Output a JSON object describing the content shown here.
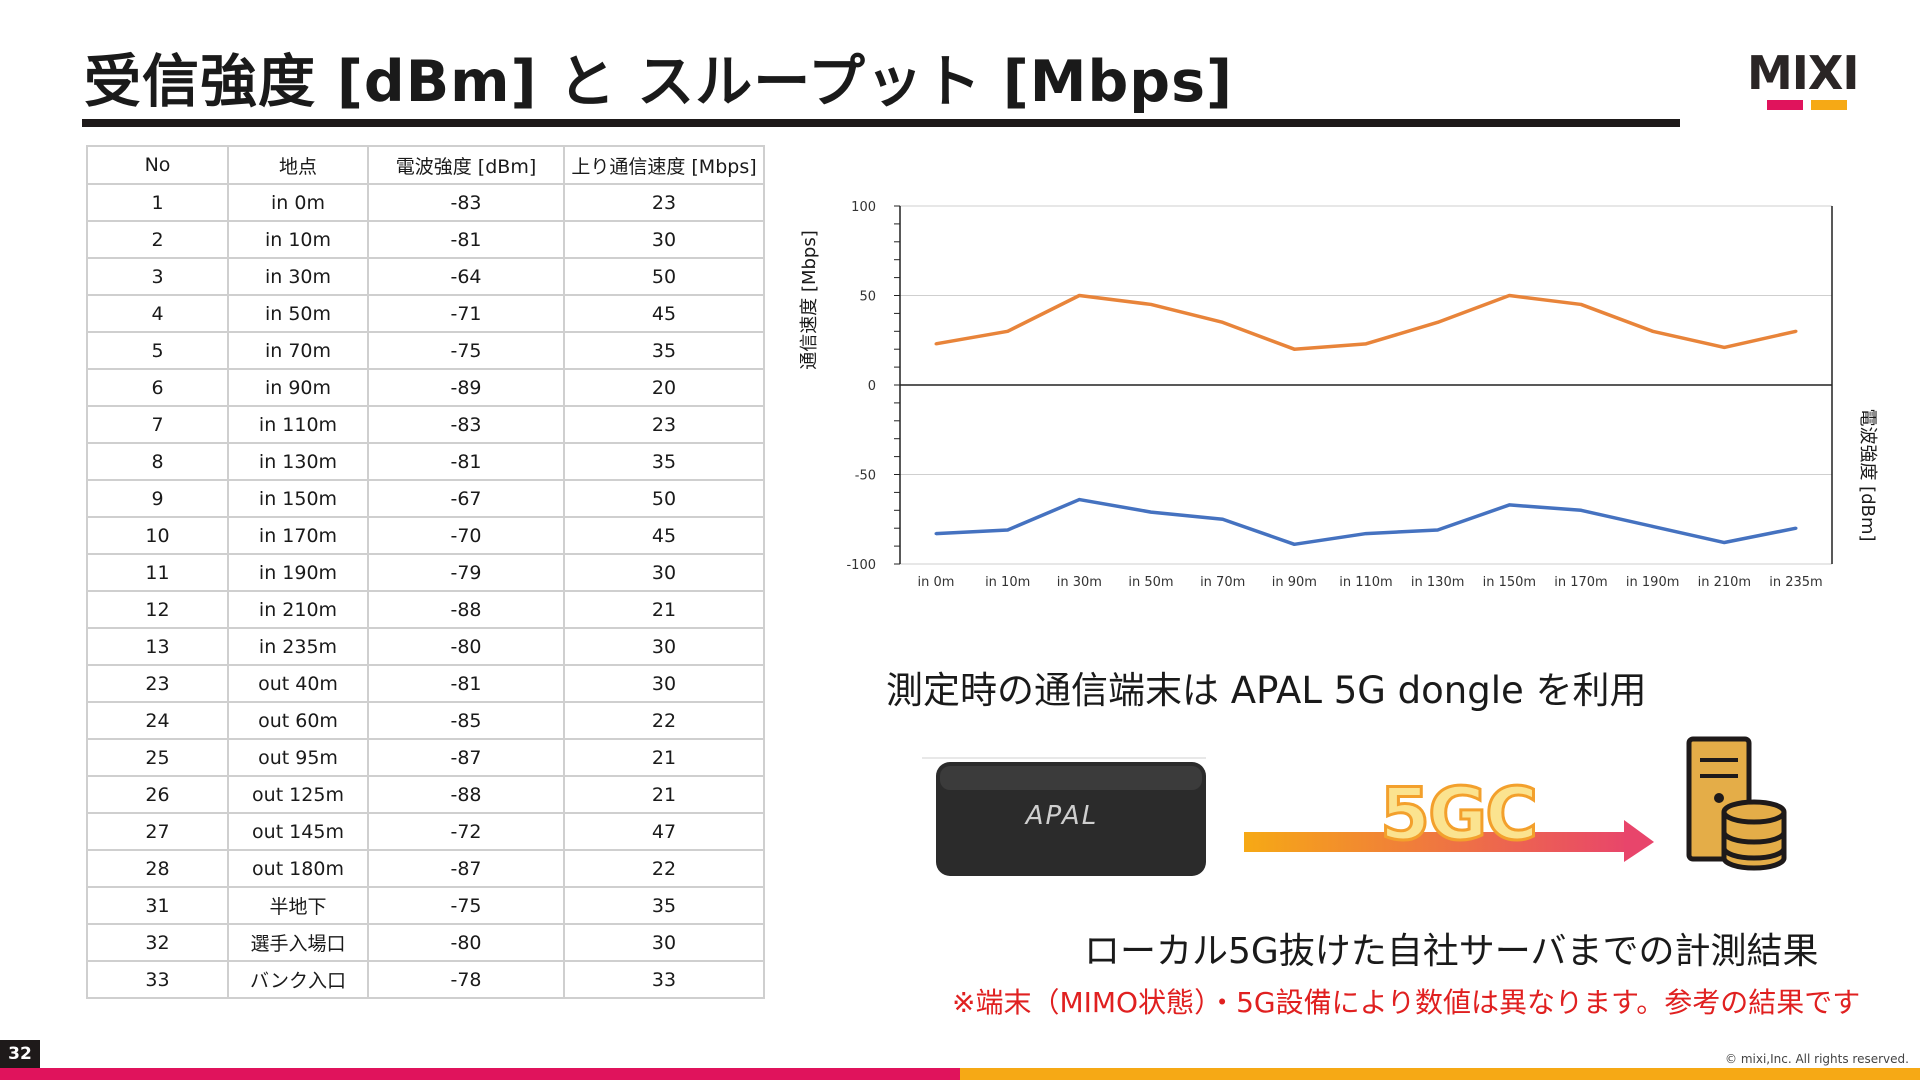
{
  "slide": {
    "title": "受信強度 [dBm] と スループット [Mbps]",
    "logo_text": "MIXI",
    "page_number": "32",
    "copyright": "© mixi,Inc. All rights reserved."
  },
  "table": {
    "headers": [
      "No",
      "地点",
      "電波強度 [dBm]",
      "上り通信速度 [Mbps]"
    ],
    "rows": [
      [
        "1",
        "in 0m",
        "-83",
        "23"
      ],
      [
        "2",
        "in 10m",
        "-81",
        "30"
      ],
      [
        "3",
        "in 30m",
        "-64",
        "50"
      ],
      [
        "4",
        "in 50m",
        "-71",
        "45"
      ],
      [
        "5",
        "in 70m",
        "-75",
        "35"
      ],
      [
        "6",
        "in 90m",
        "-89",
        "20"
      ],
      [
        "7",
        "in 110m",
        "-83",
        "23"
      ],
      [
        "8",
        "in 130m",
        "-81",
        "35"
      ],
      [
        "9",
        "in 150m",
        "-67",
        "50"
      ],
      [
        "10",
        "in 170m",
        "-70",
        "45"
      ],
      [
        "11",
        "in 190m",
        "-79",
        "30"
      ],
      [
        "12",
        "in 210m",
        "-88",
        "21"
      ],
      [
        "13",
        "in 235m",
        "-80",
        "30"
      ],
      [
        "23",
        "out 40m",
        "-81",
        "30"
      ],
      [
        "24",
        "out 60m",
        "-85",
        "22"
      ],
      [
        "25",
        "out 95m",
        "-87",
        "21"
      ],
      [
        "26",
        "out 125m",
        "-88",
        "21"
      ],
      [
        "27",
        "out 145m",
        "-72",
        "47"
      ],
      [
        "28",
        "out 180m",
        "-87",
        "22"
      ],
      [
        "31",
        "半地下",
        "-75",
        "35"
      ],
      [
        "32",
        "選手入場口",
        "-80",
        "30"
      ],
      [
        "33",
        "バンク入口",
        "-78",
        "33"
      ]
    ]
  },
  "chart_data": {
    "type": "line",
    "categories": [
      "in 0m",
      "in 10m",
      "in 30m",
      "in 50m",
      "in 70m",
      "in 90m",
      "in 110m",
      "in 130m",
      "in 150m",
      "in 170m",
      "in 190m",
      "in 210m",
      "in 235m"
    ],
    "series": [
      {
        "values": [
          23,
          30,
          50,
          45,
          35,
          20,
          23,
          35,
          50,
          45,
          30,
          21,
          30
        ],
        "color": "#e8843a"
      },
      {
        "values": [
          -83,
          -81,
          -64,
          -71,
          -75,
          -89,
          -83,
          -81,
          -67,
          -70,
          -79,
          -88,
          -80
        ],
        "color": "#4572c0"
      }
    ],
    "ylim": [
      -100,
      100
    ],
    "yticks": [
      100,
      50,
      0,
      -50,
      -100
    ],
    "ylabel_left": "通信速度 [Mbps]",
    "ylabel_right": "電波強度 [dBm]",
    "grid": true
  },
  "notes": {
    "device": "測定時の通信端末は APAL 5G dongle を利用",
    "result": "ローカル5G抜けた自社サーバまでの計測結果",
    "disclaimer": "※端末（MIMO状態）・5G設備により数値は異なります。参考の結果です"
  },
  "diagram": {
    "dongle_brand": "APAL",
    "network_label": "5GC"
  },
  "colors": {
    "brand_red": "#e0135c",
    "brand_orange": "#f6a915",
    "speed_line": "#e8843a",
    "signal_line": "#4572c0",
    "disclaimer": "#e02020"
  }
}
